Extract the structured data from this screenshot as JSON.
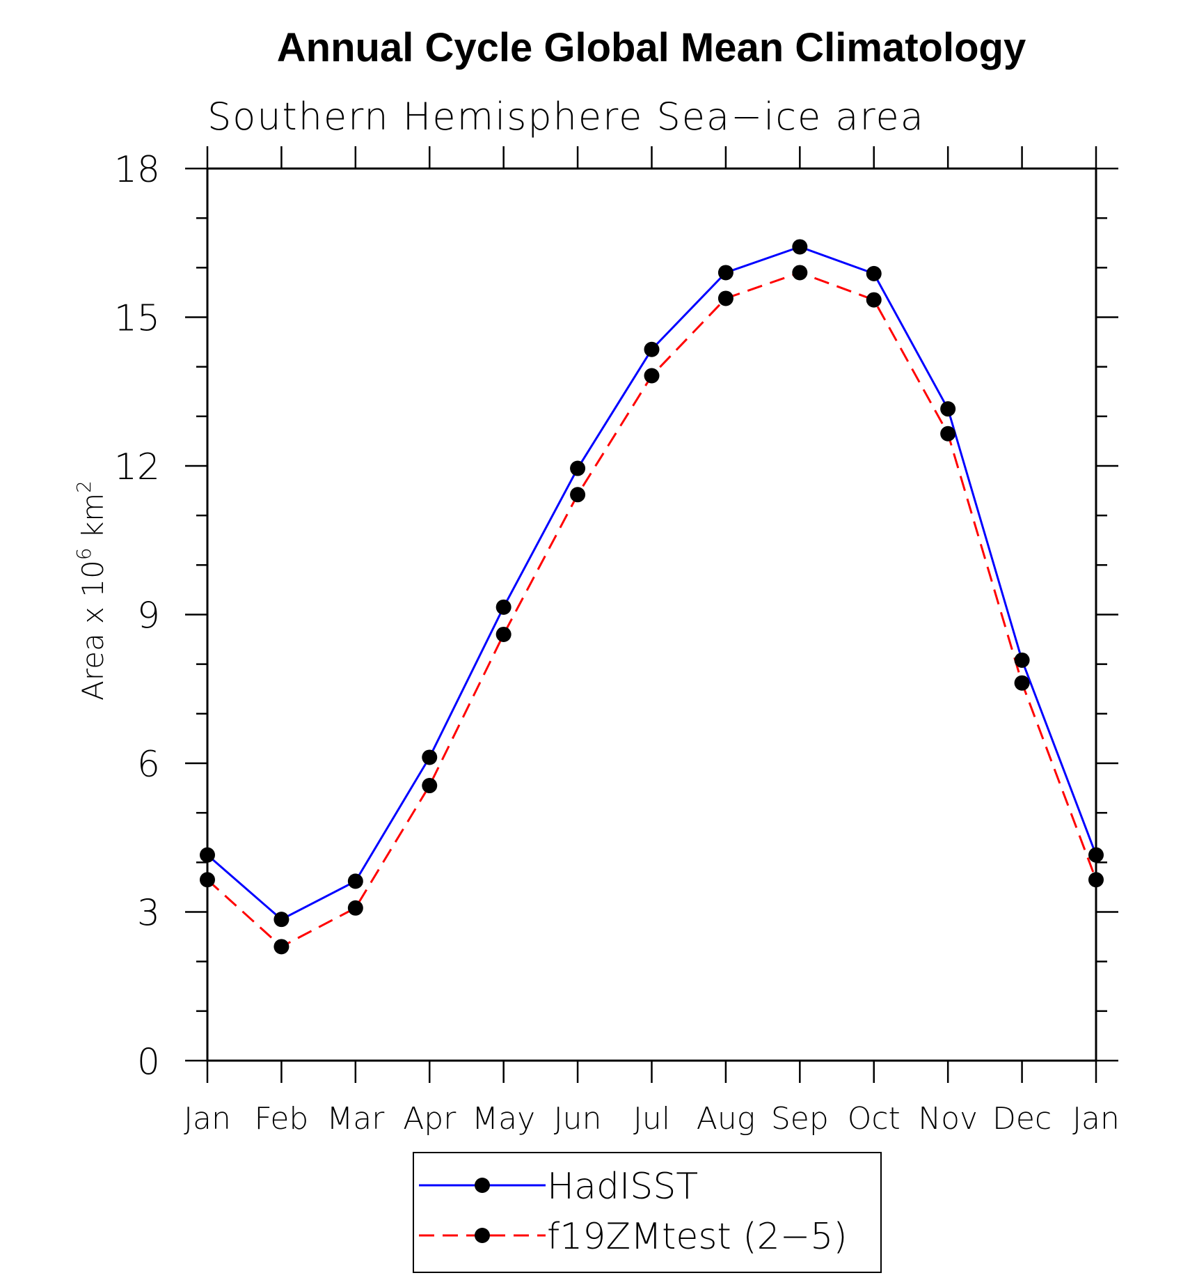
{
  "chart_data": {
    "type": "line",
    "title": "Annual Cycle Global Mean Climatology",
    "subtitle": "Southern Hemisphere Sea−ice area",
    "ylabel_main": "Area x 10",
    "ylabel_exp1": "6",
    "ylabel_unit": " km",
    "ylabel_exp2": "2",
    "ylim": [
      0,
      18
    ],
    "yticks": [
      "0",
      "3",
      "6",
      "9",
      "12",
      "15",
      "18"
    ],
    "categories": [
      "Jan",
      "Feb",
      "Mar",
      "Apr",
      "May",
      "Jun",
      "Jul",
      "Aug",
      "Sep",
      "Oct",
      "Nov",
      "Dec",
      "Jan"
    ],
    "grid": false,
    "legend_position": "bottom",
    "series": [
      {
        "name": "HadISST",
        "color": "#0000ff",
        "dash": "solid",
        "values": [
          4.15,
          2.85,
          3.62,
          6.12,
          9.15,
          11.95,
          14.35,
          15.9,
          16.42,
          15.88,
          13.15,
          8.08,
          4.15
        ]
      },
      {
        "name": "f19ZMtest (2−5)",
        "color": "#ff0000",
        "dash": "dashed",
        "values": [
          3.65,
          2.3,
          3.08,
          5.55,
          8.6,
          11.42,
          13.82,
          15.38,
          15.9,
          15.35,
          12.65,
          7.62,
          3.65
        ]
      }
    ]
  }
}
